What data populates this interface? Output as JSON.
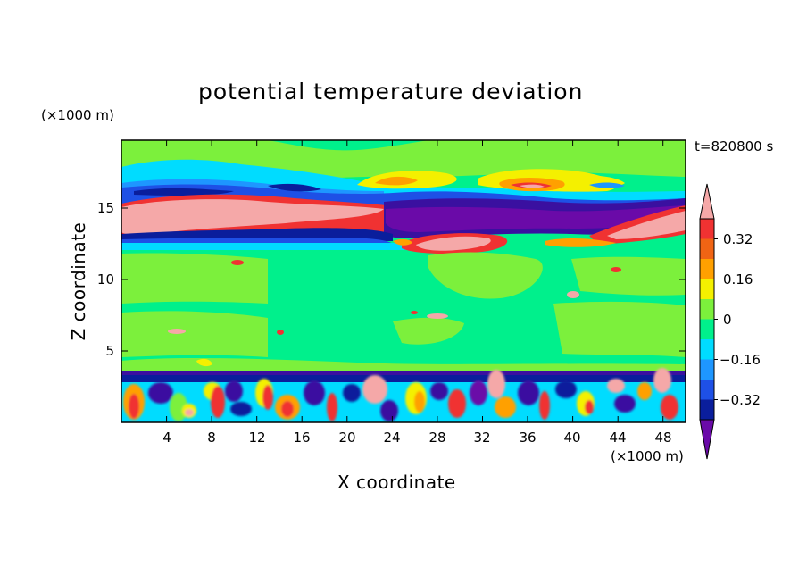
{
  "chart_data": {
    "type": "heatmap",
    "title": "potential temperature deviation",
    "xlabel": "X coordinate",
    "ylabel": "Z coordinate",
    "x_unit": "(×1000 m)",
    "y_unit": "(×1000 m)",
    "time_label": "t=820800 s",
    "xlim": [
      0,
      50
    ],
    "ylim": [
      0,
      19.7
    ],
    "x_ticks": [
      4,
      8,
      12,
      16,
      20,
      24,
      28,
      32,
      36,
      40,
      44,
      48
    ],
    "y_ticks": [
      5,
      10,
      15
    ],
    "colorbar": {
      "levels": [
        -0.48,
        -0.4,
        -0.32,
        -0.24,
        -0.16,
        -0.08,
        0,
        0.08,
        0.16,
        0.24,
        0.32,
        0.4
      ],
      "colors": [
        "#6a0aa8",
        "#3a10a0",
        "#0a1e9c",
        "#1e50e6",
        "#1e96ff",
        "#00dcff",
        "#00f08c",
        "#7cf03c",
        "#f4f000",
        "#ffa000",
        "#f06414",
        "#f03232",
        "#f5a8a8"
      ],
      "tick_labels": [
        "0.32",
        "0.16",
        "0",
        "−0.16",
        "−0.32"
      ],
      "tick_values": [
        0.32,
        0.16,
        0,
        -0.16,
        -0.32
      ],
      "extend": "both"
    }
  }
}
